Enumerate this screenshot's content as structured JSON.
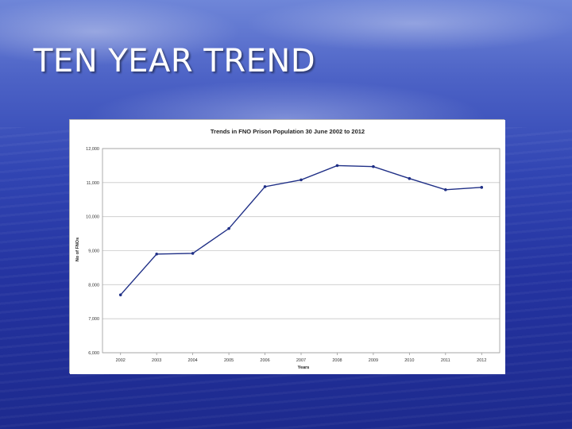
{
  "slide": {
    "title": "TEN YEAR TREND"
  },
  "chart_data": {
    "type": "line",
    "title": "Trends in FNO Prison Population 30 June 2002 to 2012",
    "xlabel": "Years",
    "ylabel": "No of FNOs",
    "categories": [
      "2002",
      "2003",
      "2004",
      "2005",
      "2006",
      "2007",
      "2008",
      "2009",
      "2010",
      "2011",
      "2012"
    ],
    "series": [
      {
        "values": [
          7700,
          8900,
          8920,
          9650,
          10880,
          11080,
          11500,
          11470,
          11120,
          10790,
          10860
        ]
      }
    ],
    "ylim": [
      6000,
      12000
    ],
    "yticks": [
      6000,
      7000,
      8000,
      9000,
      10000,
      11000,
      12000
    ],
    "ytick_labels": [
      "6,000",
      "7,000",
      "8,000",
      "9,000",
      "10,000",
      "11,000",
      "12,000"
    ],
    "grid": true,
    "line_color": "#1f2f86"
  }
}
